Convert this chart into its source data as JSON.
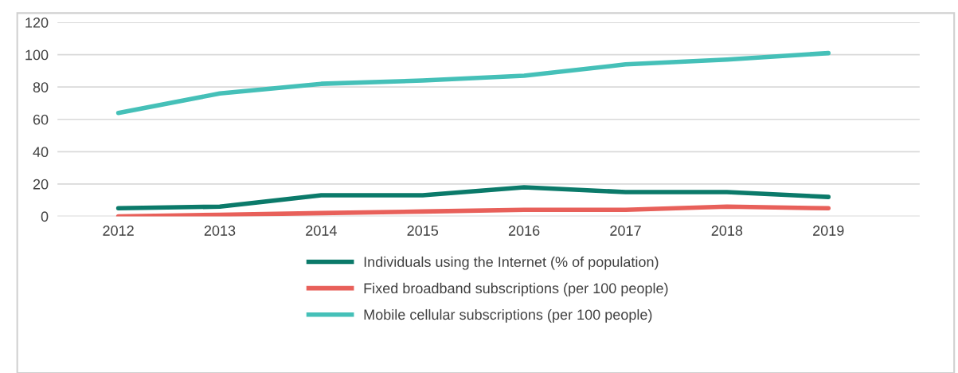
{
  "chart_data": {
    "type": "line",
    "categories": [
      "2012",
      "2013",
      "2014",
      "2015",
      "2016",
      "2017",
      "2018",
      "2019"
    ],
    "series": [
      {
        "name": "Individuals using the Internet (% of population)",
        "color": "#0b7a6a",
        "values": [
          5,
          6,
          13,
          13,
          18,
          15,
          15,
          12
        ]
      },
      {
        "name": "Fixed broadband subscriptions (per 100 people)",
        "color": "#e8605a",
        "values": [
          0,
          1,
          2,
          3,
          4,
          4,
          6,
          5
        ]
      },
      {
        "name": "Mobile cellular subscriptions (per 100 people)",
        "color": "#45c0b8",
        "values": [
          64,
          76,
          82,
          84,
          87,
          94,
          97,
          101
        ]
      }
    ],
    "ylim": [
      0,
      120
    ],
    "yticks": [
      0,
      20,
      40,
      60,
      80,
      100,
      120
    ],
    "grid": "y",
    "legend": "bottom",
    "marker": "none",
    "line_style": "solid"
  }
}
